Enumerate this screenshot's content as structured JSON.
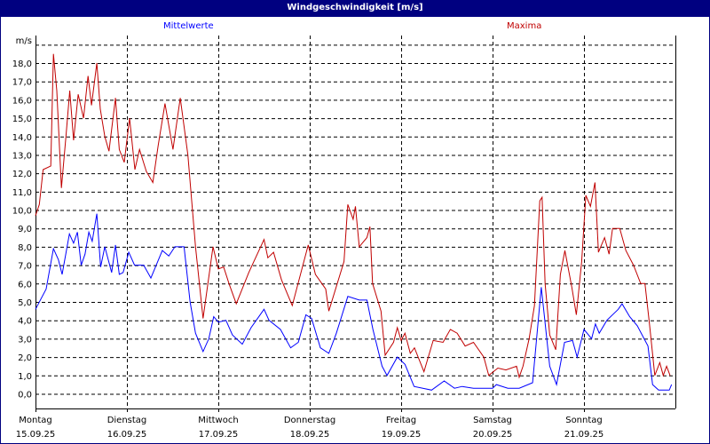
{
  "window_title": "Windgeschwindigkeit [m/s]",
  "colors": {
    "titlebar": "#000080",
    "mittelwerte": "#0000ff",
    "maxima": "#c00000",
    "grid": "#000000"
  },
  "chart_data": {
    "type": "line",
    "title": "Windgeschwindigkeit [m/s]",
    "ylabel": "m/s",
    "ylim": [
      -0.8,
      19.5
    ],
    "yticks": [
      "0,0",
      "1,0",
      "2,0",
      "3,0",
      "4,0",
      "5,0",
      "6,0",
      "7,0",
      "8,0",
      "9,0",
      "10,0",
      "11,0",
      "12,0",
      "13,0",
      "14,0",
      "15,0",
      "16,0",
      "17,0",
      "18,0"
    ],
    "xlim_hours": [
      0,
      168
    ],
    "grid": "dashed",
    "x_labels": [
      {
        "day": "Montag",
        "date": "15.09.25"
      },
      {
        "day": "Dienstag",
        "date": "16.09.25"
      },
      {
        "day": "Mittwoch",
        "date": "17.09.25"
      },
      {
        "day": "Donnerstag",
        "date": "18.09.25"
      },
      {
        "day": "Freitag",
        "date": "19.09.25"
      },
      {
        "day": "Samstag",
        "date": "20.09.25"
      },
      {
        "day": "Sonntag",
        "date": "21.09.25"
      }
    ],
    "series": [
      {
        "name": "Mittelwerte",
        "color": "#0000ff",
        "points": [
          [
            0,
            4.6
          ],
          [
            2.8,
            5.7
          ],
          [
            4.7,
            7.9
          ],
          [
            6,
            7.3
          ],
          [
            7,
            6.5
          ],
          [
            8.9,
            8.7
          ],
          [
            10,
            8.2
          ],
          [
            11,
            8.8
          ],
          [
            12,
            7.0
          ],
          [
            13,
            7.6
          ],
          [
            14,
            8.8
          ],
          [
            14.9,
            8.3
          ],
          [
            16.1,
            9.8
          ],
          [
            17.1,
            6.9
          ],
          [
            18.2,
            8.0
          ],
          [
            20,
            6.6
          ],
          [
            21,
            8.1
          ],
          [
            22,
            6.5
          ],
          [
            23,
            6.6
          ],
          [
            24.5,
            7.7
          ],
          [
            26,
            7.0
          ],
          [
            28.4,
            7.0
          ],
          [
            30.3,
            6.3
          ],
          [
            33.3,
            7.8
          ],
          [
            35,
            7.5
          ],
          [
            36.6,
            8.0
          ],
          [
            39,
            8.0
          ],
          [
            40.6,
            5.0
          ],
          [
            42,
            3.3
          ],
          [
            44,
            2.3
          ],
          [
            45.5,
            3.0
          ],
          [
            46.8,
            4.2
          ],
          [
            48,
            3.9
          ],
          [
            50,
            4.0
          ],
          [
            51.7,
            3.2
          ],
          [
            54.3,
            2.7
          ],
          [
            56.6,
            3.6
          ],
          [
            60,
            4.6
          ],
          [
            61.3,
            4.0
          ],
          [
            64.3,
            3.5
          ],
          [
            67,
            2.5
          ],
          [
            69,
            2.8
          ],
          [
            71,
            4.3
          ],
          [
            72.5,
            4.1
          ],
          [
            74.8,
            2.5
          ],
          [
            77,
            2.2
          ],
          [
            79,
            3.3
          ],
          [
            82,
            5.3
          ],
          [
            85,
            5.1
          ],
          [
            87,
            5.1
          ],
          [
            88.6,
            3.5
          ],
          [
            91,
            1.5
          ],
          [
            92.3,
            1.0
          ],
          [
            95,
            2.0
          ],
          [
            97,
            1.6
          ],
          [
            99.4,
            0.4
          ],
          [
            104,
            0.2
          ],
          [
            107.3,
            0.7
          ],
          [
            110,
            0.3
          ],
          [
            112,
            0.4
          ],
          [
            115,
            0.3
          ],
          [
            120,
            0.3
          ],
          [
            121,
            0.5
          ],
          [
            124,
            0.3
          ],
          [
            127,
            0.3
          ],
          [
            130.5,
            0.6
          ],
          [
            132.8,
            5.8
          ],
          [
            135,
            1.5
          ],
          [
            136.8,
            0.5
          ],
          [
            138.9,
            2.8
          ],
          [
            141,
            2.9
          ],
          [
            142.2,
            2.0
          ],
          [
            144,
            3.5
          ],
          [
            146,
            3.0
          ],
          [
            147,
            3.8
          ],
          [
            148,
            3.3
          ],
          [
            150,
            4.0
          ],
          [
            153,
            4.6
          ],
          [
            154,
            4.9
          ],
          [
            156,
            4.2
          ],
          [
            158,
            3.7
          ],
          [
            160.8,
            2.6
          ],
          [
            162,
            0.5
          ],
          [
            163.6,
            0.2
          ],
          [
            166.4,
            0.2
          ],
          [
            167,
            0.5
          ]
        ]
      },
      {
        "name": "Maxima",
        "color": "#c00000",
        "points": [
          [
            0,
            9.7
          ],
          [
            1,
            10.3
          ],
          [
            2,
            12.2
          ],
          [
            4,
            12.4
          ],
          [
            4.7,
            18.5
          ],
          [
            5.6,
            16.5
          ],
          [
            6.8,
            11.2
          ],
          [
            8,
            14
          ],
          [
            9,
            16.5
          ],
          [
            10,
            13.8
          ],
          [
            11.2,
            16.3
          ],
          [
            12.6,
            15
          ],
          [
            13.8,
            17.3
          ],
          [
            14.7,
            15.7
          ],
          [
            16.1,
            18
          ],
          [
            17,
            15.5
          ],
          [
            18.2,
            14
          ],
          [
            19.3,
            13.2
          ],
          [
            21,
            16.1
          ],
          [
            22,
            13.3
          ],
          [
            23.3,
            12.6
          ],
          [
            24.7,
            15
          ],
          [
            26.1,
            12.2
          ],
          [
            27.3,
            13.3
          ],
          [
            29.1,
            12.1
          ],
          [
            30.8,
            11.5
          ],
          [
            32.2,
            13.5
          ],
          [
            34,
            15.8
          ],
          [
            36.1,
            13.3
          ],
          [
            38,
            16.1
          ],
          [
            40,
            13
          ],
          [
            42,
            8
          ],
          [
            44,
            4.1
          ],
          [
            46.6,
            8
          ],
          [
            48,
            6.8
          ],
          [
            49.4,
            6.9
          ],
          [
            50.8,
            6
          ],
          [
            52.7,
            4.9
          ],
          [
            56,
            6.6
          ],
          [
            60,
            8.4
          ],
          [
            61,
            7.4
          ],
          [
            62.5,
            7.7
          ],
          [
            64.6,
            6.2
          ],
          [
            67.4,
            4.8
          ],
          [
            71.6,
            8.1
          ],
          [
            73.5,
            6.5
          ],
          [
            76.2,
            5.7
          ],
          [
            77,
            4.5
          ],
          [
            81,
            7.2
          ],
          [
            82,
            10.3
          ],
          [
            83.4,
            9.5
          ],
          [
            84,
            10.2
          ],
          [
            85,
            8
          ],
          [
            87,
            8.5
          ],
          [
            87.8,
            9.1
          ],
          [
            88.5,
            6
          ],
          [
            90.7,
            4.5
          ],
          [
            91.8,
            2.1
          ],
          [
            94,
            2.8
          ],
          [
            95,
            3.6
          ],
          [
            96,
            2.9
          ],
          [
            97,
            3.3
          ],
          [
            98.4,
            2.2
          ],
          [
            99.5,
            2.5
          ],
          [
            102,
            1.2
          ],
          [
            104.4,
            2.9
          ],
          [
            107,
            2.8
          ],
          [
            108.9,
            3.5
          ],
          [
            110.7,
            3.3
          ],
          [
            112.8,
            2.6
          ],
          [
            115,
            2.8
          ],
          [
            117.7,
            2
          ],
          [
            119,
            1.0
          ],
          [
            121.4,
            1.4
          ],
          [
            123.5,
            1.3
          ],
          [
            126.3,
            1.5
          ],
          [
            127,
            0.9
          ],
          [
            128,
            1.5
          ],
          [
            129.6,
            3.0
          ],
          [
            131,
            4.8
          ],
          [
            132.4,
            10.5
          ],
          [
            133,
            10.7
          ],
          [
            133.8,
            6
          ],
          [
            135,
            3.2
          ],
          [
            136.6,
            2.4
          ],
          [
            137.8,
            6.5
          ],
          [
            139,
            7.8
          ],
          [
            140.8,
            5.8
          ],
          [
            142,
            4.3
          ],
          [
            143.4,
            7.2
          ],
          [
            144.5,
            10.8
          ],
          [
            145.7,
            10.2
          ],
          [
            146.9,
            11.5
          ],
          [
            147.8,
            7.7
          ],
          [
            149.4,
            8.5
          ],
          [
            150.6,
            7.6
          ],
          [
            151.5,
            9
          ],
          [
            153.4,
            9
          ],
          [
            155,
            7.8
          ],
          [
            157,
            7.0
          ],
          [
            158.9,
            6.0
          ],
          [
            160,
            6.0
          ],
          [
            161.2,
            3.8
          ],
          [
            162.6,
            1.0
          ],
          [
            163.9,
            1.7
          ],
          [
            164.8,
            1.0
          ],
          [
            165.7,
            1.5
          ],
          [
            166.6,
            1.0
          ]
        ]
      }
    ]
  }
}
